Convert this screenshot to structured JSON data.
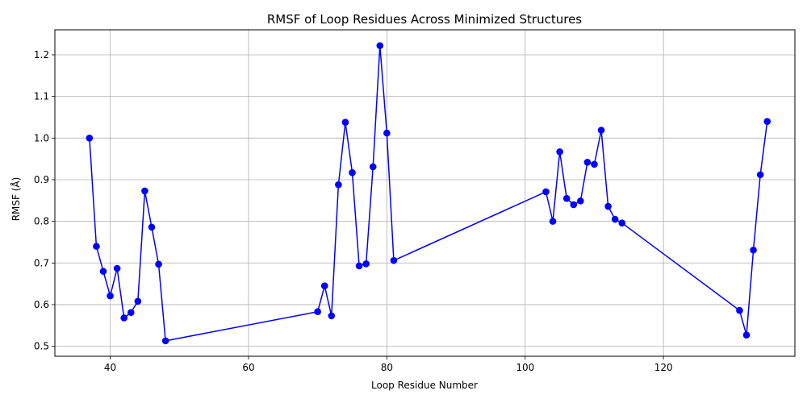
{
  "chart_data": {
    "type": "line",
    "title": "RMSF of Loop Residues Across Minimized Structures",
    "xlabel": "Loop Residue Number",
    "ylabel": "RMSF (Å)",
    "xlim": [
      32,
      139
    ],
    "ylim": [
      0.476,
      1.26
    ],
    "xticks": [
      40,
      60,
      80,
      100,
      120
    ],
    "xtick_labels": [
      "40",
      "60",
      "80",
      "100",
      "120"
    ],
    "yticks": [
      0.5,
      0.6,
      0.7,
      0.8,
      0.9,
      1.0,
      1.1,
      1.2
    ],
    "ytick_labels": [
      "0.5",
      "0.6",
      "0.7",
      "0.8",
      "0.9",
      "1.0",
      "1.1",
      "1.2"
    ],
    "grid": true,
    "marker": "circle",
    "series": [
      {
        "color": "#0000ff",
        "x": [
          37,
          38,
          39,
          40,
          41,
          42,
          43,
          44,
          45,
          46,
          47,
          48,
          70,
          71,
          72,
          73,
          74,
          75,
          76,
          77,
          78,
          79,
          80,
          81,
          103,
          104,
          105,
          106,
          107,
          108,
          109,
          110,
          111,
          112,
          113,
          114,
          131,
          132,
          133,
          134,
          135
        ],
        "y": [
          1.0,
          0.74,
          0.68,
          0.621,
          0.687,
          0.568,
          0.581,
          0.608,
          0.873,
          0.786,
          0.697,
          0.513,
          0.583,
          0.645,
          0.573,
          0.888,
          1.038,
          0.917,
          0.693,
          0.698,
          0.931,
          1.222,
          1.012,
          0.706,
          0.871,
          0.8,
          0.967,
          0.855,
          0.84,
          0.849,
          0.942,
          0.937,
          1.019,
          0.836,
          0.805,
          0.796,
          0.586,
          0.527,
          0.731,
          0.912,
          1.04
        ]
      }
    ]
  }
}
